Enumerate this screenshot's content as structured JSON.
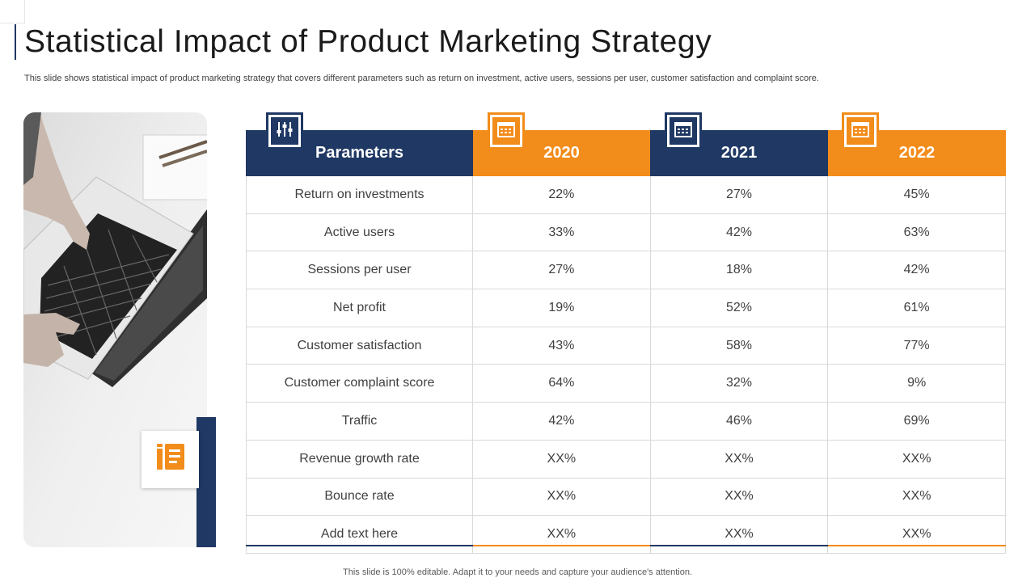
{
  "slide": {
    "title": "Statistical Impact of Product Marketing Strategy",
    "subtitle": "This slide shows statistical impact of product marketing strategy that covers different parameters such as return on investment, active users, sessions per user, customer satisfaction and complaint score.",
    "footer": "This slide is 100% editable. Adapt it to your needs and capture your audience's attention."
  },
  "colors": {
    "navy": "#1f3864",
    "orange": "#f28c1a"
  },
  "icons": {
    "parameters": "sliders-icon",
    "year": "calendar-icon",
    "badge": "notebook-icon"
  },
  "table": {
    "headers": [
      "Parameters",
      "2020",
      "2021",
      "2022"
    ],
    "rows": [
      [
        "Return  on investments",
        "22%",
        "27%",
        "45%"
      ],
      [
        "Active users",
        "33%",
        "42%",
        "63%"
      ],
      [
        "Sessions per user",
        "27%",
        "18%",
        "42%"
      ],
      [
        "Net profit",
        "19%",
        "52%",
        "61%"
      ],
      [
        "Customer satisfaction",
        "43%",
        "58%",
        "77%"
      ],
      [
        "Customer complaint score",
        "64%",
        "32%",
        "9%"
      ],
      [
        "Traffic",
        "42%",
        "46%",
        "69%"
      ],
      [
        "Revenue  growth rate",
        "XX%",
        "XX%",
        "XX%"
      ],
      [
        "Bounce rate",
        "XX%",
        "XX%",
        "XX%"
      ],
      [
        "Add text here",
        "XX%",
        "XX%",
        "XX%"
      ]
    ]
  }
}
